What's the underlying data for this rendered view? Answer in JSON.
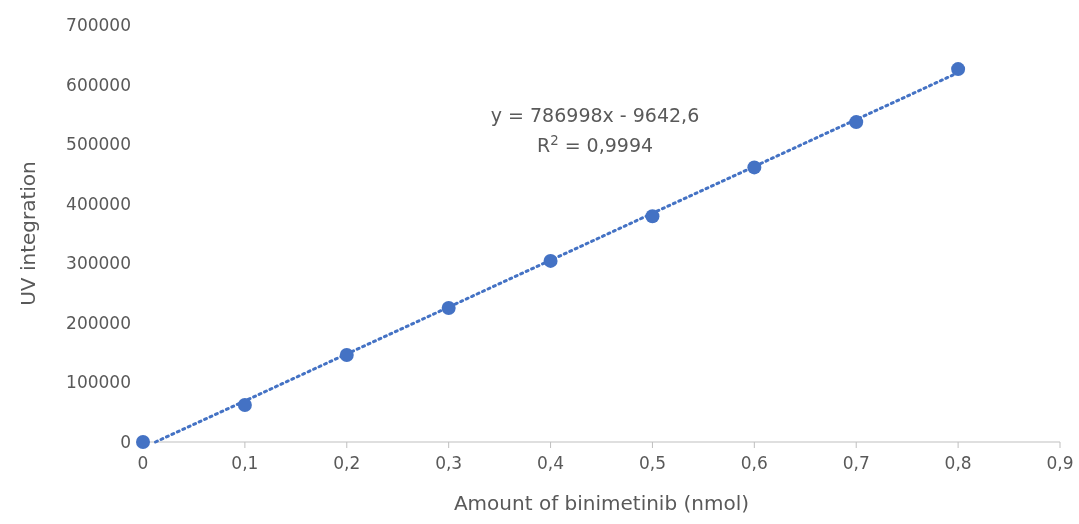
{
  "chart_data": {
    "type": "scatter",
    "xlabel": "Amount of binimetinib (nmol)",
    "ylabel": "UV integration",
    "xlim": [
      0,
      0.9
    ],
    "xticks": [
      0,
      {
        "value": 0.1,
        "label": "0,1"
      },
      {
        "value": 0.2,
        "label": "0,2"
      },
      {
        "value": 0.3,
        "label": "0,3"
      },
      {
        "value": 0.4,
        "label": "0,4"
      },
      {
        "value": 0.5,
        "label": "0,5"
      },
      {
        "value": 0.6,
        "label": "0,6"
      },
      {
        "value": 0.7,
        "label": "0,7"
      },
      {
        "value": 0.8,
        "label": "0,8"
      },
      {
        "value": 0.9,
        "label": "0,9"
      }
    ],
    "ylim": [
      0,
      700000
    ],
    "yticks": [
      0,
      100000,
      200000,
      300000,
      400000,
      500000,
      600000,
      700000
    ],
    "grid": false,
    "marker": "circle",
    "series": [
      {
        "color": "#4472c4",
        "x": [
          0,
          0.1,
          0.2,
          0.3,
          0.4,
          0.5,
          0.6,
          0.7,
          0.8
        ],
        "values": [
          0,
          62000,
          146000,
          225000,
          304000,
          379000,
          461000,
          537000,
          626000
        ]
      },
      {
        "type": "line",
        "color": "#4472c4",
        "line_style": "dotted",
        "marker": "none",
        "x": [
          0.0123,
          0.8
        ],
        "values": [
          0,
          620000
        ]
      }
    ],
    "annotations": [
      "y = 786998x - 9642,6",
      "R$^{2}$ = 0,9994"
    ]
  }
}
